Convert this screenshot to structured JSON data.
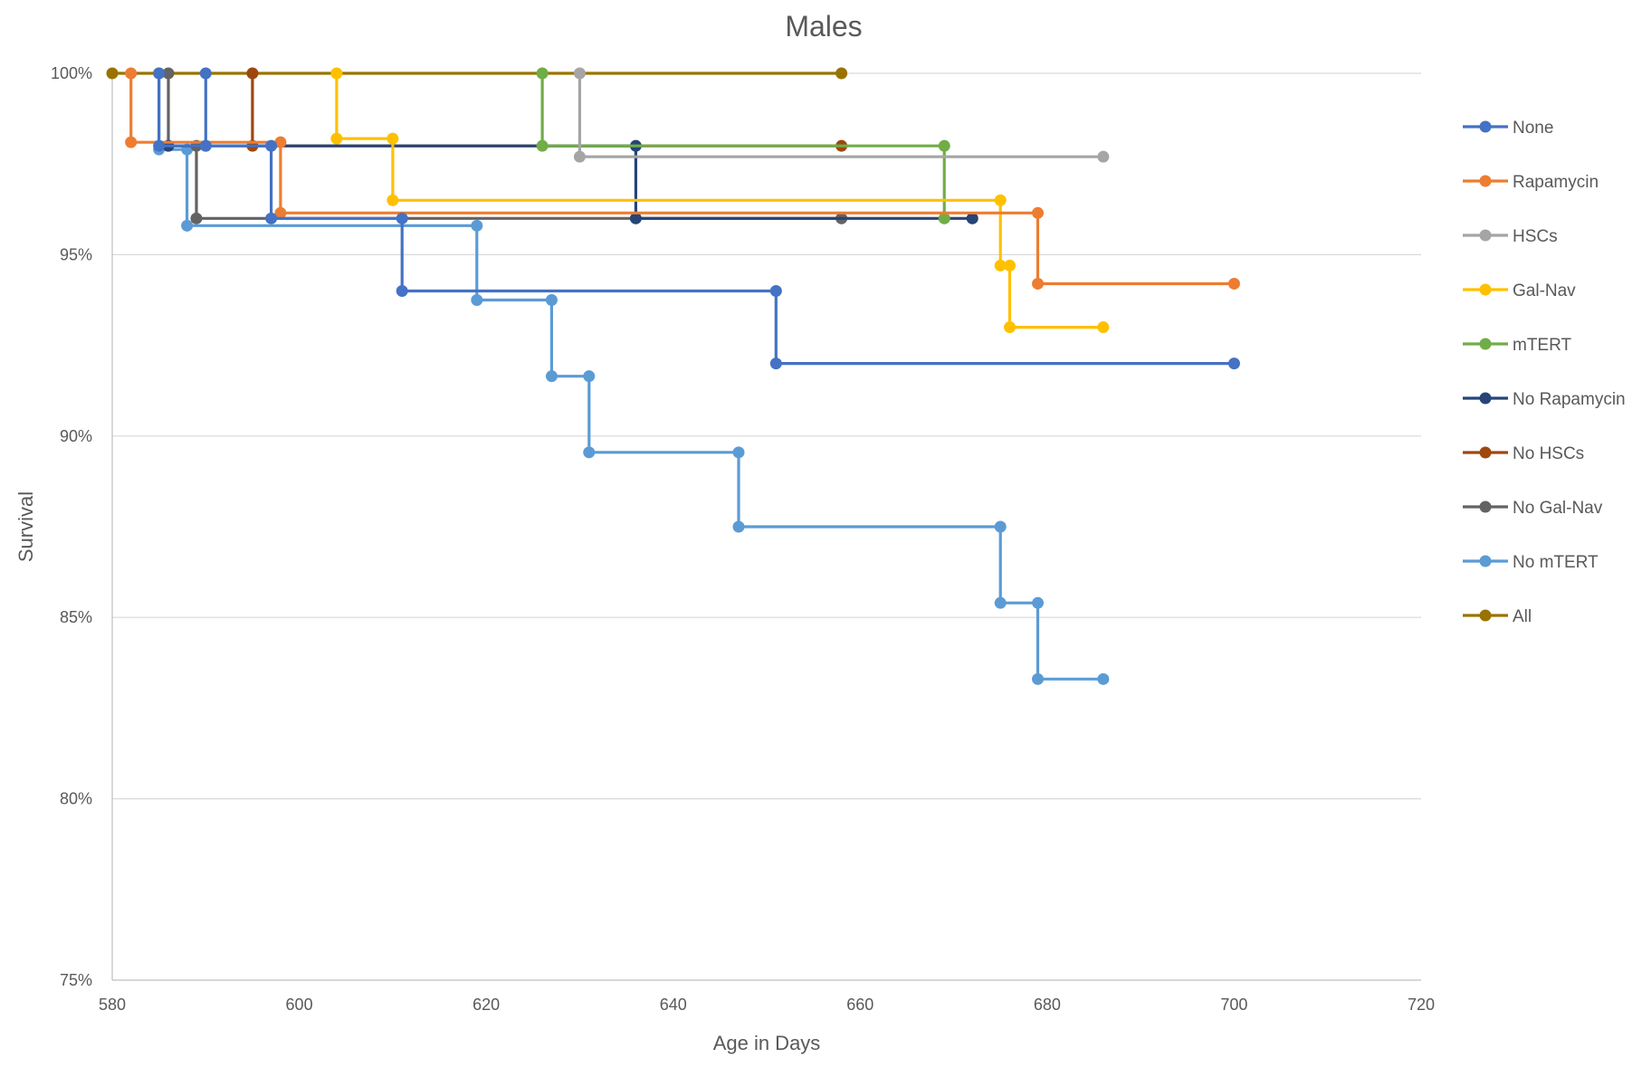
{
  "chart_data": {
    "type": "line",
    "title": "Males",
    "xlabel": "Age in Days",
    "ylabel": "Survival",
    "xlim": [
      580,
      720
    ],
    "ylim": [
      75,
      100
    ],
    "x_ticks": [
      580,
      600,
      620,
      640,
      660,
      680,
      700,
      720
    ],
    "y_ticks": [
      75,
      80,
      85,
      90,
      95,
      100
    ],
    "x_tick_labels": [
      "580",
      "600",
      "620",
      "640",
      "660",
      "680",
      "700",
      "720"
    ],
    "y_tick_labels": [
      "75%",
      "80%",
      "85%",
      "90%",
      "95%",
      "100%"
    ],
    "grid": "horizontal",
    "legend_position": "right",
    "step_plot": true,
    "series": [
      {
        "name": "None",
        "color": "#4472C4",
        "points": [
          [
            585,
            100
          ],
          [
            585,
            98
          ],
          [
            590,
            98
          ],
          [
            590,
            100
          ],
          [
            590,
            98
          ],
          [
            597,
            98
          ],
          [
            597,
            96
          ],
          [
            611,
            96
          ],
          [
            611,
            94
          ],
          [
            651,
            94
          ],
          [
            651,
            92
          ],
          [
            700,
            92
          ]
        ]
      },
      {
        "name": "Rapamycin",
        "color": "#ED7D31",
        "points": [
          [
            582,
            100
          ],
          [
            582,
            98.1
          ],
          [
            598,
            98.1
          ],
          [
            598,
            96.15
          ],
          [
            679,
            96.15
          ],
          [
            679,
            94.2
          ],
          [
            700,
            94.2
          ]
        ]
      },
      {
        "name": "HSCs",
        "color": "#A5A5A5",
        "points": [
          [
            630,
            100
          ],
          [
            630,
            97.7
          ],
          [
            686,
            97.7
          ]
        ]
      },
      {
        "name": "Gal-Nav",
        "color": "#FFC000",
        "points": [
          [
            604,
            100
          ],
          [
            604,
            98.2
          ],
          [
            610,
            98.2
          ],
          [
            610,
            96.5
          ],
          [
            675,
            96.5
          ],
          [
            675,
            94.7
          ],
          [
            676,
            94.7
          ],
          [
            676,
            93
          ],
          [
            686,
            93
          ]
        ]
      },
      {
        "name": "mTERT",
        "color": "#70AD47",
        "points": [
          [
            626,
            100
          ],
          [
            626,
            98
          ],
          [
            669,
            98
          ],
          [
            669,
            96
          ]
        ]
      },
      {
        "name": "No Rapamycin",
        "color": "#264478",
        "points": [
          [
            586,
            98
          ],
          [
            636,
            98
          ],
          [
            636,
            96
          ],
          [
            672,
            96
          ]
        ]
      },
      {
        "name": "No HSCs",
        "color": "#9E480E",
        "points": [
          [
            595,
            100
          ],
          [
            595,
            98
          ],
          [
            658,
            98
          ]
        ]
      },
      {
        "name": "No Gal-Nav",
        "color": "#636363",
        "points": [
          [
            586,
            100
          ],
          [
            586,
            98
          ],
          [
            589,
            98
          ],
          [
            589,
            96
          ],
          [
            658,
            96
          ]
        ]
      },
      {
        "name": "No mTERT",
        "color": "#5B9BD5",
        "points": [
          [
            585,
            100
          ],
          [
            585,
            97.9
          ],
          [
            588,
            97.9
          ],
          [
            588,
            95.8
          ],
          [
            619,
            95.8
          ],
          [
            619,
            93.75
          ],
          [
            627,
            93.75
          ],
          [
            627,
            91.65
          ],
          [
            631,
            91.65
          ],
          [
            631,
            89.55
          ],
          [
            647,
            89.55
          ],
          [
            647,
            87.5
          ],
          [
            675,
            87.5
          ],
          [
            675,
            85.4
          ],
          [
            679,
            85.4
          ],
          [
            679,
            83.3
          ],
          [
            686,
            83.3
          ]
        ]
      },
      {
        "name": "All",
        "color": "#997300",
        "points": [
          [
            580,
            100
          ],
          [
            658,
            100
          ]
        ]
      }
    ]
  }
}
